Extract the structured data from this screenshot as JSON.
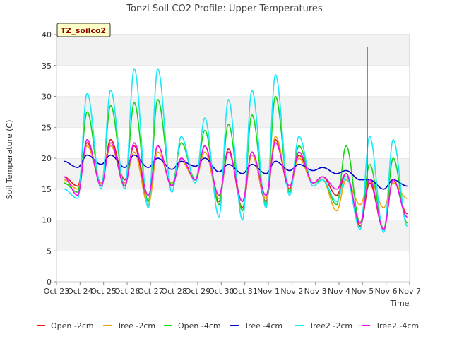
{
  "chart_data": {
    "type": "line",
    "title": "Tonzi Soil CO2 Profile: Upper Temperatures",
    "badge": "TZ_soilco2",
    "xlabel": "Time",
    "ylabel": "Soil Temperature (C)",
    "ylim": [
      0,
      40
    ],
    "yticks": [
      0,
      5,
      10,
      15,
      20,
      25,
      30,
      35,
      40
    ],
    "xlim_days": [
      0,
      15
    ],
    "xtick_labels": [
      "Oct 23",
      "Oct 24",
      "Oct 25",
      "Oct 26",
      "Oct 27",
      "Oct 28",
      "Oct 29",
      "Oct 30",
      "Oct 31",
      "Nov 1",
      "Nov 2",
      "Nov 3",
      "Nov 4",
      "Nov 5",
      "Nov 6",
      "Nov 7"
    ],
    "grid": "horizontal bands",
    "legend_position": "bottom",
    "daily_x": [
      0.3,
      0.9,
      1.3,
      1.9,
      2.3,
      2.9,
      3.3,
      3.9,
      4.3,
      4.9,
      5.3,
      5.9,
      6.3,
      6.9,
      7.3,
      7.9,
      8.3,
      8.9,
      9.3,
      9.9,
      10.3,
      10.9,
      11.3,
      11.9,
      12.3,
      12.9,
      13.3,
      13.9,
      14.3,
      14.9
    ],
    "series": [
      {
        "name": "Open -2cm",
        "color": "#e8161a",
        "values": [
          17,
          15.5,
          22.5,
          16,
          23,
          16.5,
          22,
          13,
          22,
          15.5,
          20,
          16.5,
          22,
          13,
          21.5,
          12,
          21,
          13,
          23,
          15,
          20.5,
          16,
          17,
          14,
          17.5,
          9,
          16,
          8.5,
          16.5,
          11
        ]
      },
      {
        "name": "Tree -2cm",
        "color": "#f0a010",
        "values": [
          16.5,
          15,
          22,
          16,
          22,
          16,
          21,
          12.5,
          21,
          16,
          19.5,
          16.5,
          21,
          13.5,
          21,
          13,
          20.5,
          13.5,
          23.5,
          15.5,
          20,
          16,
          16.5,
          11.5,
          16.5,
          12.5,
          16.5,
          12,
          16,
          13.5
        ]
      },
      {
        "name": "Open -4cm",
        "color": "#18d418",
        "values": [
          16,
          14.5,
          27.5,
          15.5,
          28.5,
          15.5,
          29,
          13,
          29.5,
          15.5,
          22.5,
          16.5,
          24.5,
          12.5,
          25.5,
          11.5,
          27,
          12.5,
          30,
          14.5,
          22,
          16,
          16.5,
          12.5,
          22,
          9.5,
          19,
          8.5,
          20,
          9.5
        ]
      },
      {
        "name": "Tree -4cm",
        "color": "#0000cc",
        "values": [
          19.5,
          18.5,
          20.5,
          19,
          20.5,
          18.5,
          20.5,
          18.5,
          20,
          18.2,
          19.5,
          18.7,
          20,
          17.8,
          19,
          17.5,
          19,
          17.5,
          19.5,
          18,
          19,
          18,
          18.5,
          17.5,
          18,
          16.5,
          16.5,
          15,
          16.5,
          15.5
        ]
      },
      {
        "name": "Tree2 -2cm",
        "color": "#18e8f8",
        "values": [
          15,
          13.5,
          30.5,
          15,
          31,
          15,
          34.5,
          12,
          34.5,
          14.5,
          23.5,
          16,
          26.5,
          10.5,
          29.5,
          10,
          31,
          12,
          33.5,
          14,
          23.5,
          15.5,
          16.5,
          13,
          17,
          8.5,
          23.5,
          8,
          23,
          9
        ]
      },
      {
        "name": "Tree2 -4cm",
        "color": "#ee10ee",
        "values": [
          17,
          14,
          23,
          15.5,
          22.5,
          15.5,
          22.5,
          14,
          22,
          15.5,
          20,
          16.5,
          22,
          14,
          21,
          13,
          21,
          14,
          22.5,
          15.5,
          21,
          16,
          17,
          15,
          17.5,
          9.5,
          16.5,
          8.5,
          16.5,
          10.5
        ]
      }
    ],
    "spike": {
      "series": "Tree2 -4cm",
      "x": 13.2,
      "value": 38
    }
  },
  "legend": [
    {
      "label": "Open -2cm",
      "color": "#e8161a"
    },
    {
      "label": "Tree -2cm",
      "color": "#f0a010"
    },
    {
      "label": "Open -4cm",
      "color": "#18d418"
    },
    {
      "label": "Tree -4cm",
      "color": "#0000cc"
    },
    {
      "label": "Tree2 -2cm",
      "color": "#18e8f8"
    },
    {
      "label": "Tree2 -4cm",
      "color": "#ee10ee"
    }
  ]
}
